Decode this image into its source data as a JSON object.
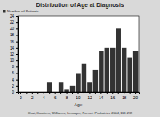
{
  "chart_data": {
    "type": "bar",
    "title": "Distribution of Age at Diagnosis",
    "x_label": "Age",
    "caption": "Chai, Cooilers, Williams, Linsager, Pernet. Pediatrics 2004;113:239",
    "categories": [
      "0",
      null,
      "2",
      null,
      "4",
      null,
      "6",
      null,
      "8",
      null,
      "10",
      null,
      "12",
      null,
      "14",
      null,
      "16",
      null,
      "18",
      null,
      "20"
    ],
    "series": [
      {
        "name": "Number of Patients",
        "color": "#333333",
        "values": [
          0,
          0,
          0,
          0,
          0,
          3,
          0,
          3,
          1,
          2,
          6,
          9,
          3,
          7,
          13,
          14,
          14,
          20,
          14,
          11,
          13
        ]
      }
    ],
    "ylim": [
      0,
      24
    ],
    "yticks": [
      0,
      2,
      4,
      6,
      8,
      10,
      12,
      14,
      16,
      18,
      20,
      22,
      24
    ],
    "grid": false,
    "legend": "top-left"
  }
}
